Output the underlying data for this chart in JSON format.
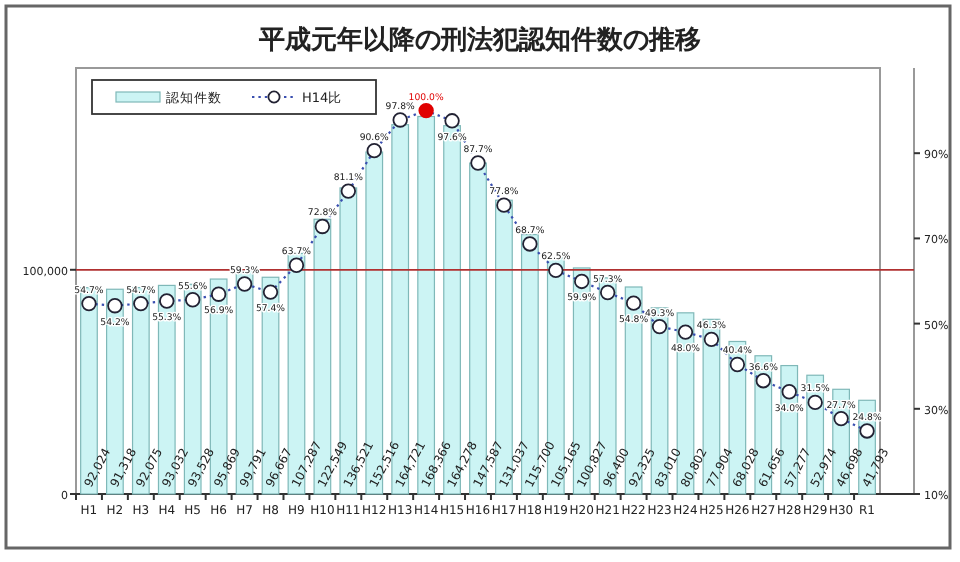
{
  "chart_data": {
    "type": "bar",
    "title": "平成元年以降の刑法犯認知件数の推移",
    "categories": [
      "H1",
      "H2",
      "H3",
      "H4",
      "H5",
      "H6",
      "H7",
      "H8",
      "H9",
      "H10",
      "H11",
      "H12",
      "H13",
      "H14",
      "H15",
      "H16",
      "H17",
      "H18",
      "H19",
      "H20",
      "H21",
      "H22",
      "H23",
      "H24",
      "H25",
      "H26",
      "H27",
      "H28",
      "H29",
      "H30",
      "R1"
    ],
    "series": [
      {
        "name": "認知件数",
        "type": "bar",
        "color": "#ccf4f4",
        "values": [
          92024,
          91318,
          92075,
          93032,
          93528,
          95869,
          99791,
          96667,
          107287,
          122549,
          136521,
          152516,
          164721,
          168366,
          164278,
          147587,
          131037,
          115700,
          105165,
          100827,
          96400,
          92325,
          83010,
          80802,
          77904,
          68028,
          61656,
          57277,
          52974,
          46698,
          41793
        ],
        "value_labels": [
          "92,024",
          "91,318",
          "92,075",
          "93,032",
          "93,528",
          "95,869",
          "99,791",
          "96,667",
          "107,287",
          "122,549",
          "136,521",
          "152,516",
          "164,721",
          "168,366",
          "164,278",
          "147,587",
          "131,037",
          "115,700",
          "105,165",
          "100,827",
          "96,400",
          "92,325",
          "83,010",
          "80,802",
          "77,904",
          "68,028",
          "61,656",
          "57,277",
          "52,974",
          "46,698",
          "41,793"
        ]
      },
      {
        "name": "H14比",
        "type": "line",
        "axis": "y2",
        "color": "#3a4fb0",
        "marker": "circle",
        "line_style": "dotted",
        "colors": [
          "#333333",
          "#333333",
          "#333333",
          "#333333",
          "#333333",
          "#333333",
          "#333333",
          "#333333",
          "#333333",
          "#333333",
          "#333333",
          "#333333",
          "#333333",
          "#e00000",
          "#333333",
          "#333333",
          "#333333",
          "#333333",
          "#333333",
          "#333333",
          "#333333",
          "#333333",
          "#333333",
          "#333333",
          "#333333",
          "#333333",
          "#333333",
          "#333333",
          "#333333",
          "#333333",
          "#333333"
        ],
        "values": [
          54.7,
          54.2,
          54.7,
          55.3,
          55.6,
          56.9,
          59.3,
          57.4,
          63.7,
          72.8,
          81.1,
          90.6,
          97.8,
          100.0,
          97.6,
          87.7,
          77.8,
          68.7,
          62.5,
          59.9,
          57.3,
          54.8,
          49.3,
          48.0,
          46.3,
          40.4,
          36.6,
          34.0,
          31.5,
          27.7,
          24.8
        ],
        "value_labels": [
          "54.7%",
          "54.2%",
          "54.7%",
          "55.3%",
          "55.6%",
          "56.9%",
          "59.3%",
          "57.4%",
          "63.7%",
          "72.8%",
          "81.1%",
          "90.6%",
          "97.8%",
          "100.0%",
          "97.6%",
          "87.7%",
          "77.8%",
          "68.7%",
          "62.5%",
          "59.9%",
          "57.3%",
          "54.8%",
          "49.3%",
          "48.0%",
          "46.3%",
          "40.4%",
          "36.6%",
          "34.0%",
          "31.5%",
          "27.7%",
          "24.8%"
        ]
      }
    ],
    "ylim": [
      0,
      190000
    ],
    "yticks": [
      0,
      {
        "value": 100000,
        "label": "100,000"
      }
    ],
    "y2lim": [
      10,
      110
    ],
    "y2ticks": [
      {
        "value": 10,
        "label": "10%"
      },
      {
        "value": 30,
        "label": "30%"
      },
      {
        "value": 50,
        "label": "50%"
      },
      {
        "value": 70,
        "label": "70%"
      },
      {
        "value": 90,
        "label": "90%"
      }
    ],
    "ref_lines": [
      {
        "axis": "y",
        "value": 100000,
        "color": "#b03030"
      }
    ],
    "legend": "top left"
  }
}
